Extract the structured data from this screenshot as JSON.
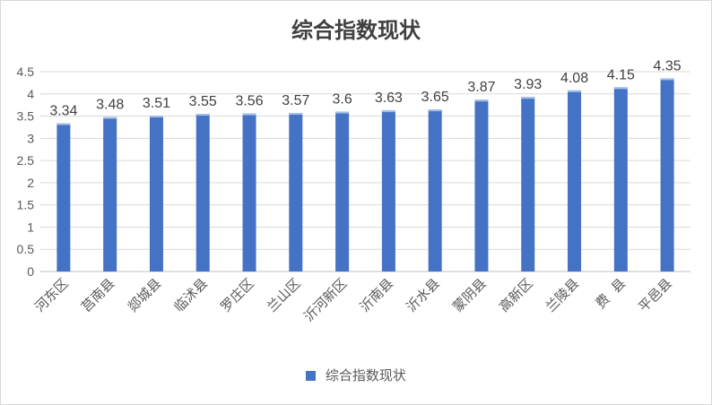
{
  "chart_data": {
    "type": "bar",
    "title": "综合指数现状",
    "categories": [
      "河东区",
      "莒南县",
      "郯城县",
      "临沭县",
      "罗庄区",
      "兰山区",
      "沂河新区",
      "沂南县",
      "沂水县",
      "蒙阴县",
      "高新区",
      "兰陵县",
      "费  县",
      "平邑县"
    ],
    "series": [
      {
        "name": "综合指数现状",
        "values": [
          3.34,
          3.48,
          3.51,
          3.55,
          3.56,
          3.57,
          3.6,
          3.63,
          3.65,
          3.87,
          3.93,
          4.08,
          4.15,
          4.35
        ],
        "labels": [
          "3.34",
          "3.48",
          "3.51",
          "3.55",
          "3.56",
          "3.57",
          "3.6",
          "3.63",
          "3.65",
          "3.87",
          "3.93",
          "4.08",
          "4.15",
          "4.35"
        ]
      }
    ],
    "yticks": [
      "0",
      "0.5",
      "1",
      "1.5",
      "2",
      "2.5",
      "3",
      "3.5",
      "4",
      "4.5"
    ],
    "ylim": [
      0,
      4.5
    ],
    "grid": true,
    "legend_position": "bottom",
    "bar_color": "#4472c4"
  }
}
